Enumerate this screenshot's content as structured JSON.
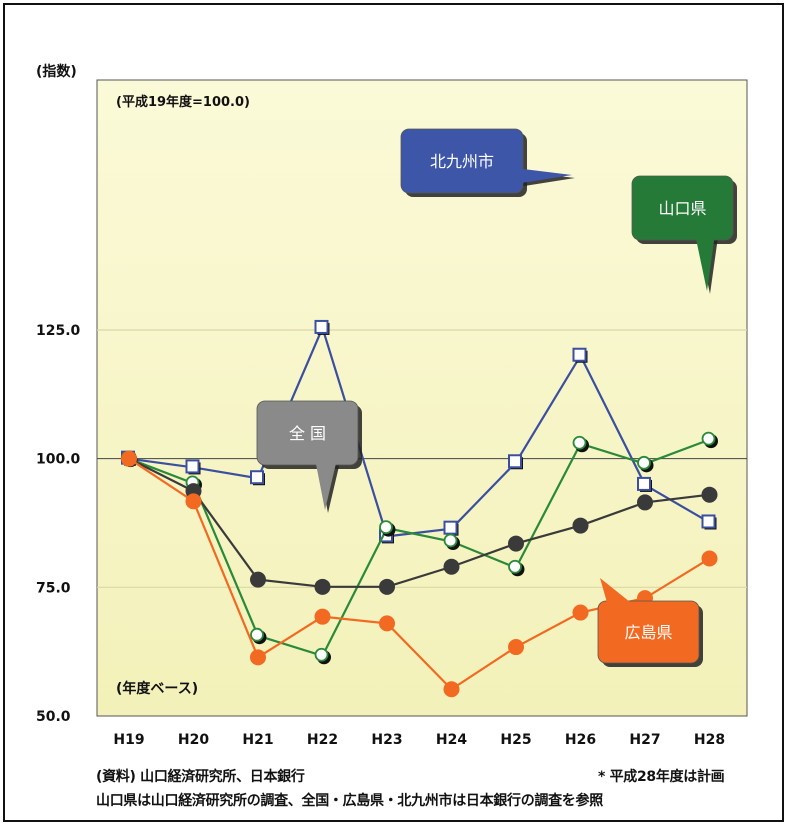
{
  "chart_data": {
    "type": "line",
    "y_unit_label": "(指数)",
    "base_note": "(平成19年度=100.0)",
    "basis_note": "(年度ベース)",
    "categories": [
      "H19",
      "H20",
      "H21",
      "H22",
      "H23",
      "H24",
      "H25",
      "H26",
      "H27",
      "H28"
    ],
    "y_ticks": [
      "50.0",
      "75.0",
      "100.0",
      "125.0"
    ],
    "ylim": [
      50,
      125
    ],
    "series": [
      {
        "name": "北九州市",
        "color": "#3b4fa0",
        "marker": "square",
        "values": [
          100.0,
          98.3,
          96.2,
          125.4,
          84.9,
          86.4,
          99.3,
          120.0,
          94.9,
          87.6
        ]
      },
      {
        "name": "山口県",
        "color": "#2a8a3a",
        "marker": "circle-white",
        "values": [
          100.0,
          95.2,
          65.6,
          61.7,
          86.5,
          83.9,
          78.8,
          102.9,
          99.0,
          103.7
        ]
      },
      {
        "name": "全国",
        "color": "#3a3a3a",
        "marker": "circle-dark",
        "values": [
          100.0,
          93.7,
          76.5,
          75.1,
          75.1,
          79.0,
          83.5,
          87.0,
          91.5,
          93.0
        ]
      },
      {
        "name": "広島県",
        "color": "#f26a21",
        "marker": "circle-orange",
        "values": [
          100.0,
          91.7,
          61.4,
          69.3,
          68.0,
          55.2,
          63.4,
          70.1,
          72.9,
          80.6
        ]
      }
    ],
    "callouts": {
      "kitakyushu": "北九州市",
      "yamaguchi": "山口県",
      "zenkoku": "全 国",
      "hiroshima": "広島県"
    },
    "grid": true,
    "plot_background": "#f7f6c8"
  },
  "footer": {
    "source": "(資料)  山口経済研究所、日本銀行",
    "plan_note": "* 平成28年度は計画",
    "reference": "山口県は山口経済研究所の調査、全国・広島県・北九州市は日本銀行の調査を参照"
  }
}
